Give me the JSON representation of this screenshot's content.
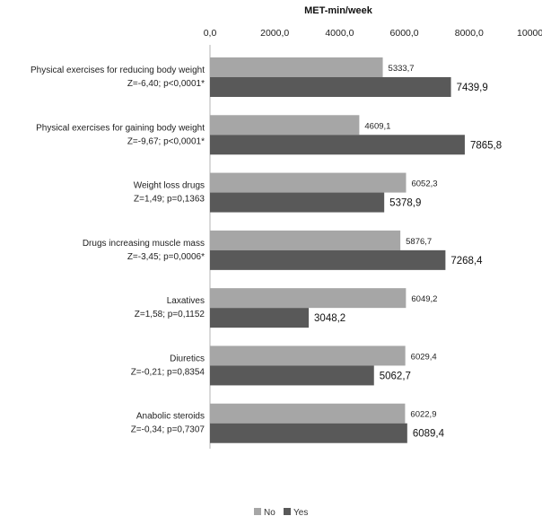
{
  "chart_data": {
    "type": "bar",
    "orientation": "horizontal",
    "title": "MET-min/week",
    "xlim": [
      0,
      10000
    ],
    "x_ticks": [
      "0,0",
      "2000,0",
      "4000,0",
      "6000,0",
      "8000,0",
      "10000,0"
    ],
    "x_tick_values": [
      0,
      2000,
      4000,
      6000,
      8000,
      10000
    ],
    "grid": false,
    "legend_position": "bottom-center",
    "categories": [
      {
        "name": "Physical exercises for reducing body weight",
        "stat": "Z=-6,40; p<0,0001*"
      },
      {
        "name": "Physical exercises for gaining body weight",
        "stat": "Z=-9,67; p<0,0001*"
      },
      {
        "name": "Weight loss drugs",
        "stat": "Z=1,49; p=0,1363"
      },
      {
        "name": "Drugs increasing muscle mass",
        "stat": "Z=-3,45; p=0,0006*"
      },
      {
        "name": "Laxatives",
        "stat": "Z=1,58; p=0,1152"
      },
      {
        "name": "Diuretics",
        "stat": "Z=-0,21; p=0,8354"
      },
      {
        "name": "Anabolic steroids",
        "stat": "Z=-0,34; p=0,7307"
      }
    ],
    "series": [
      {
        "name": "No",
        "color": "#a6a6a6",
        "values": [
          5333.7,
          4609.1,
          6052.3,
          5876.7,
          6049.2,
          6029.4,
          6022.9
        ],
        "labels": [
          "5333,7",
          "4609,1",
          "6052,3",
          "5876,7",
          "6049,2",
          "6029,4",
          "6022,9"
        ]
      },
      {
        "name": "Yes",
        "color": "#595959",
        "values": [
          7439.9,
          7865.8,
          5378.9,
          7268.4,
          3048.2,
          5062.7,
          6089.4
        ],
        "labels": [
          "7439,9",
          "7865,8",
          "5378,9",
          "7268,4",
          "3048,2",
          "5062,7",
          "6089,4"
        ]
      }
    ]
  }
}
